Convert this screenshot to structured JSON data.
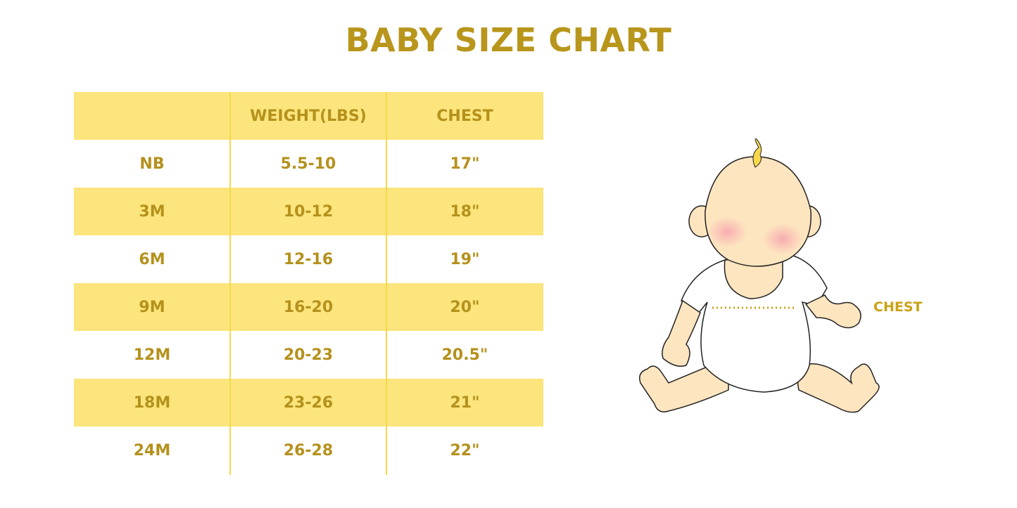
{
  "title": "BABY SIZE CHART",
  "table": {
    "headers": [
      "",
      "WEIGHT(LBS)",
      "CHEST"
    ],
    "rows": [
      [
        "NB",
        "5.5-10",
        "17\""
      ],
      [
        "3M",
        "10-12",
        "18\""
      ],
      [
        "6M",
        "12-16",
        "19\""
      ],
      [
        "9M",
        "16-20",
        "20\""
      ],
      [
        "12M",
        "20-23",
        "20.5\""
      ],
      [
        "18M",
        "23-26",
        "21\""
      ],
      [
        "24M",
        "26-28",
        "22\""
      ]
    ]
  },
  "illustration": {
    "chest_label": "CHEST"
  },
  "colors": {
    "text": "#b5911c",
    "band": "#fbe57c",
    "skin": "#fde5bf",
    "hair": "#f7d84a"
  }
}
